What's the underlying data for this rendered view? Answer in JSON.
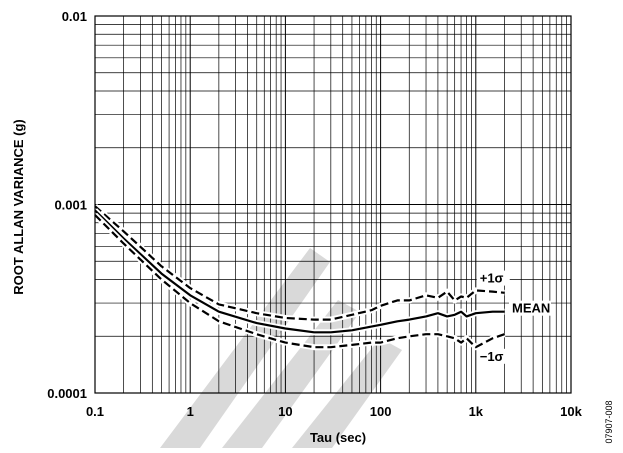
{
  "chart_data": {
    "type": "line",
    "x_scale": "log",
    "y_scale": "log",
    "xlim": [
      0.1,
      10000
    ],
    "ylim": [
      0.0001,
      0.01
    ],
    "xlabel": "Tau (sec)",
    "ylabel": "ROOT ALLAN VARIANCE (g)",
    "x_ticks": [
      "0.1",
      "1",
      "10",
      "100",
      "1k",
      "10k"
    ],
    "y_ticks": [
      "0.0001",
      "0.001",
      "0.01"
    ],
    "grid": true,
    "series": [
      {
        "name": "+1σ",
        "style": "dashed",
        "color": "#000000",
        "x": [
          0.1,
          0.2,
          0.5,
          1,
          2,
          5,
          10,
          20,
          30,
          50,
          80,
          100,
          150,
          200,
          300,
          400,
          500,
          600,
          700,
          800,
          1000,
          1500,
          2000
        ],
        "y": [
          0.00098,
          0.00072,
          0.00047,
          0.00036,
          0.000295,
          0.000265,
          0.00025,
          0.000245,
          0.000245,
          0.00026,
          0.000275,
          0.00029,
          0.00031,
          0.00031,
          0.00033,
          0.00032,
          0.000345,
          0.00031,
          0.000325,
          0.00032,
          0.00035,
          0.000345,
          0.00034
        ]
      },
      {
        "name": "MEAN",
        "style": "solid",
        "color": "#000000",
        "x": [
          0.1,
          0.2,
          0.5,
          1,
          2,
          5,
          10,
          20,
          30,
          50,
          80,
          100,
          150,
          200,
          300,
          400,
          500,
          600,
          700,
          800,
          1000,
          1500,
          2000
        ],
        "y": [
          0.00093,
          0.00066,
          0.00043,
          0.00033,
          0.00027,
          0.000235,
          0.00022,
          0.00021,
          0.00021,
          0.000215,
          0.000225,
          0.00023,
          0.00024,
          0.000245,
          0.000255,
          0.000265,
          0.000255,
          0.00026,
          0.00027,
          0.000255,
          0.000265,
          0.00027,
          0.00027
        ]
      },
      {
        "name": "−1σ",
        "style": "dashed",
        "color": "#000000",
        "x": [
          0.1,
          0.2,
          0.5,
          1,
          2,
          5,
          10,
          20,
          30,
          50,
          80,
          100,
          150,
          200,
          300,
          400,
          500,
          600,
          700,
          800,
          1000,
          1500,
          2000
        ],
        "y": [
          0.00088,
          0.00062,
          0.0004,
          0.0003,
          0.00024,
          0.000205,
          0.000185,
          0.000175,
          0.000175,
          0.00018,
          0.000185,
          0.000185,
          0.000195,
          0.0002,
          0.000205,
          0.000205,
          0.0002,
          0.000195,
          0.000185,
          0.000195,
          0.000175,
          0.000195,
          0.000205
        ]
      }
    ],
    "annotations": [
      {
        "text": "+1σ",
        "x": 1100,
        "y": 0.00039
      },
      {
        "text": "MEAN",
        "x": 2400,
        "y": 0.00027
      },
      {
        "text": "−1σ",
        "x": 1100,
        "y": 0.00015
      }
    ],
    "figure_id": "07907-008",
    "watermark_color": "#d9d9d9"
  }
}
